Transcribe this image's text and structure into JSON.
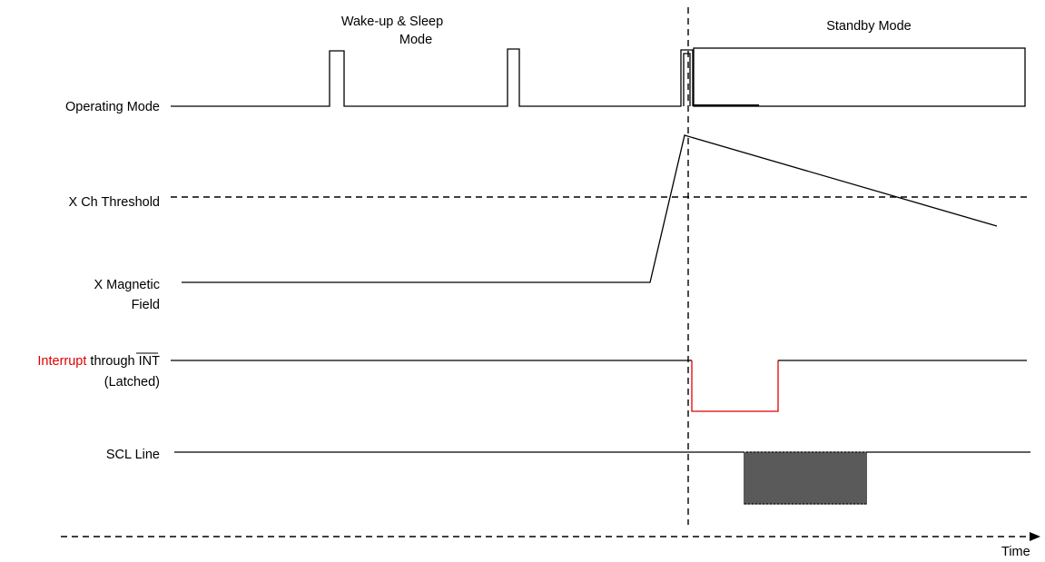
{
  "region_labels": {
    "wake_sleep_line1": "Wake-up & Sleep",
    "wake_sleep_line2": "Mode",
    "standby": "Standby Mode"
  },
  "signals": {
    "operating_mode": "Operating Mode",
    "x_threshold": "X Ch Threshold",
    "x_field_line1": "X Magnetic",
    "x_field_line2": "Field",
    "interrupt_word": "Interrupt",
    "interrupt_through": " through ",
    "interrupt_pin": "INT",
    "interrupt_latched": "(Latched)",
    "scl": "SCL Line"
  },
  "axis": {
    "label": "Time"
  },
  "colors": {
    "signal": "#000000",
    "interrupt_highlight": "#e00000"
  }
}
